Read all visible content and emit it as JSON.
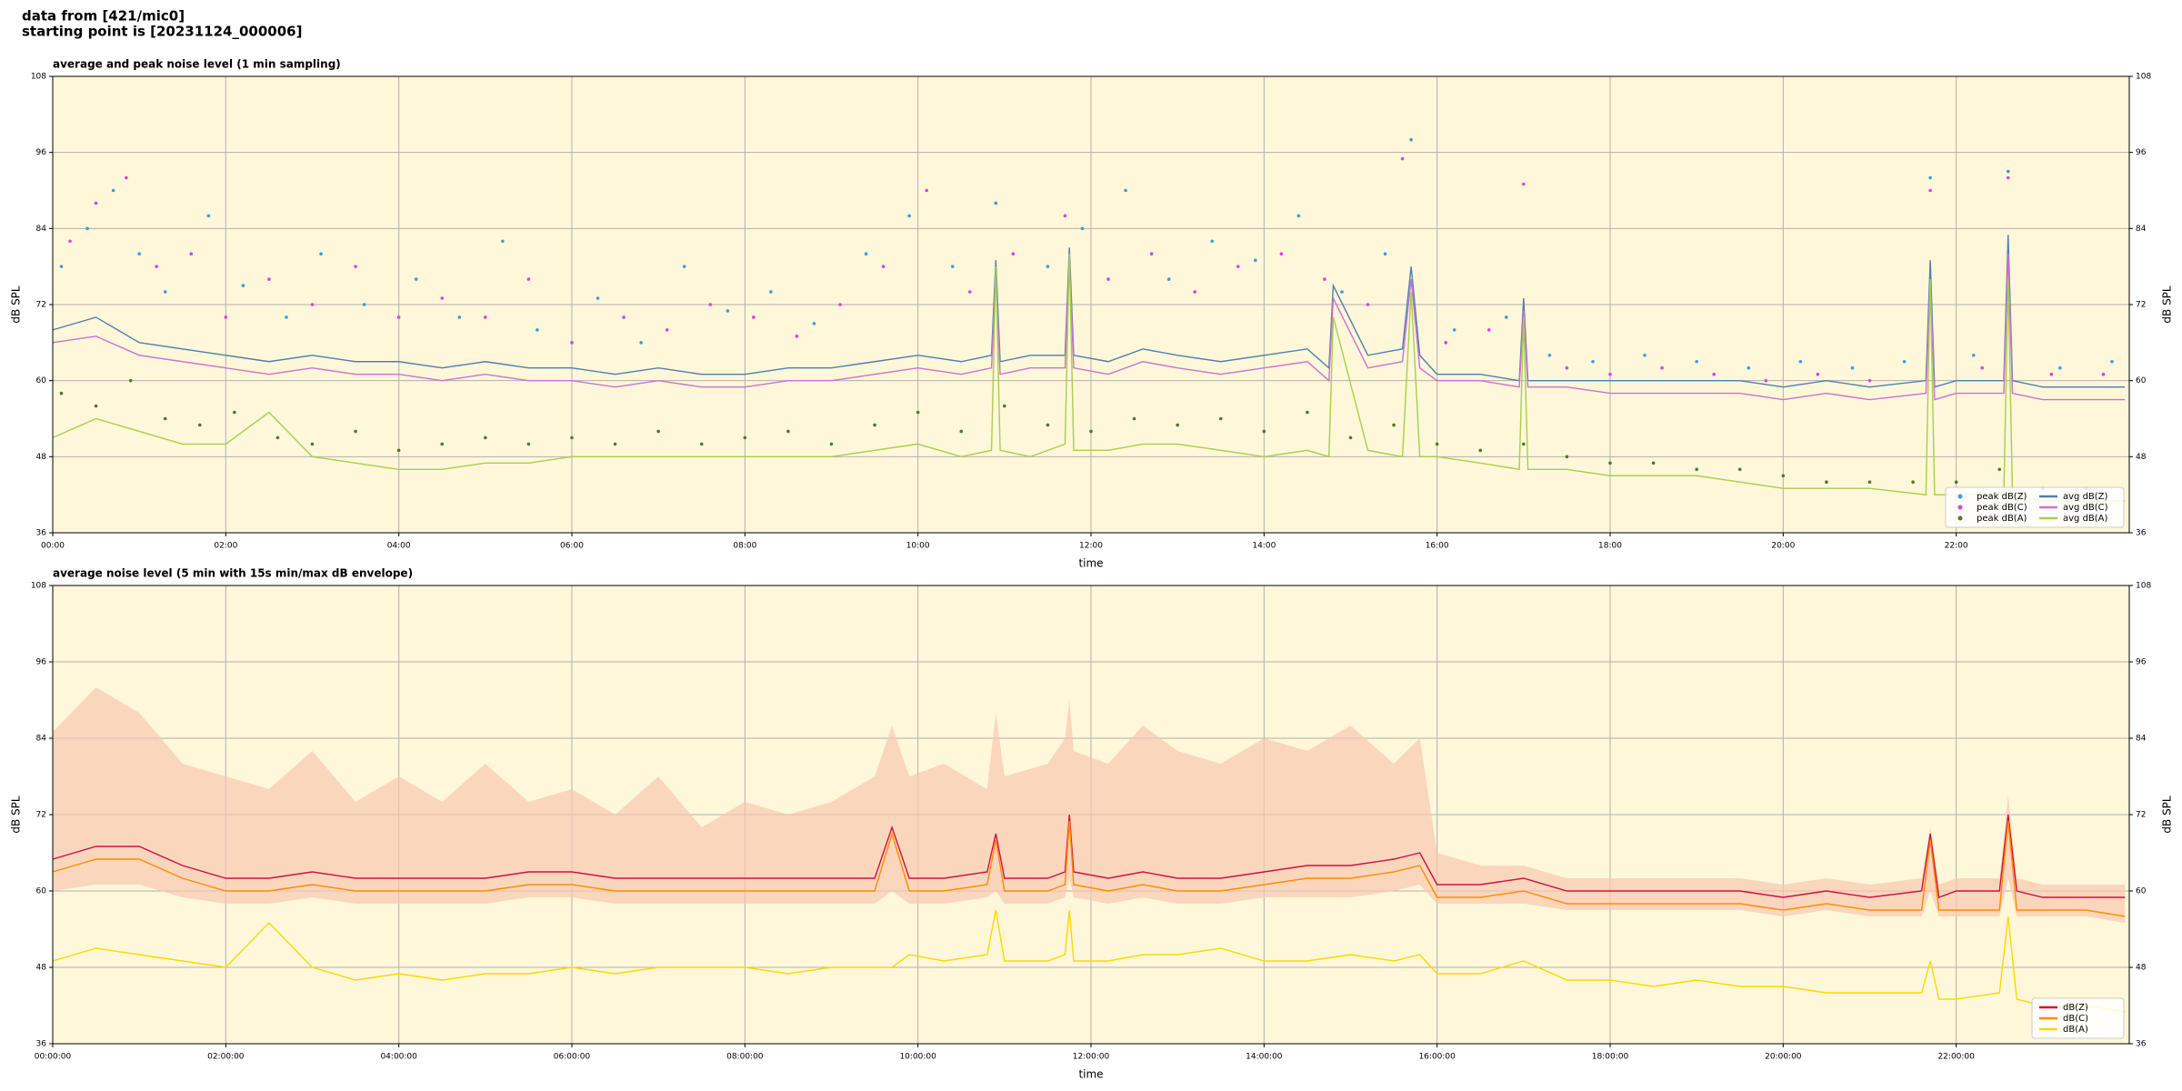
{
  "suptitle": [
    "data from [421/mic0]",
    "starting point is [20231124_000006]"
  ],
  "chart_data": [
    {
      "type": "line",
      "title": "average and peak noise level (1 min sampling)",
      "xlabel": "time",
      "ylabel": "dB SPL",
      "xlim": [
        0,
        24
      ],
      "ylim": [
        36,
        108
      ],
      "xticks": [
        {
          "value": 0,
          "label": "00:00"
        },
        {
          "value": 2,
          "label": "02:00"
        },
        {
          "value": 4,
          "label": "04:00"
        },
        {
          "value": 6,
          "label": "06:00"
        },
        {
          "value": 8,
          "label": "08:00"
        },
        {
          "value": 10,
          "label": "10:00"
        },
        {
          "value": 12,
          "label": "12:00"
        },
        {
          "value": 14,
          "label": "14:00"
        },
        {
          "value": 16,
          "label": "16:00"
        },
        {
          "value": 18,
          "label": "18:00"
        },
        {
          "value": 20,
          "label": "20:00"
        },
        {
          "value": 22,
          "label": "22:00"
        }
      ],
      "yticks": [
        36,
        48,
        60,
        72,
        84,
        96,
        108
      ],
      "grid": true,
      "legend": "lower right",
      "legend_ncol": 2,
      "background": "#fff7d9",
      "x": [
        0,
        0.5,
        1,
        1.5,
        2,
        2.5,
        3,
        3.5,
        4,
        4.5,
        5,
        5.5,
        6,
        6.5,
        7,
        7.5,
        8,
        8.5,
        9,
        9.5,
        10,
        10.5,
        10.85,
        10.9,
        10.95,
        11.3,
        11.7,
        11.75,
        11.8,
        12.2,
        12.6,
        13,
        13.5,
        14,
        14.5,
        14.75,
        14.8,
        15.2,
        15.6,
        15.7,
        15.8,
        16,
        16.5,
        16.95,
        17,
        17.05,
        17.5,
        18,
        18.5,
        19,
        19.5,
        20,
        20.5,
        21,
        21.65,
        21.7,
        21.75,
        22,
        22.55,
        22.6,
        22.65,
        23,
        23.5,
        23.95
      ],
      "series": [
        {
          "name": "peak dB(Z)",
          "type": "scatter",
          "color": "#3a9fd8",
          "x": [
            0.1,
            0.4,
            0.7,
            1.0,
            1.3,
            1.8,
            2.2,
            2.7,
            3.1,
            3.6,
            4.2,
            4.7,
            5.2,
            5.6,
            6.3,
            6.8,
            7.3,
            7.8,
            8.3,
            8.8,
            9.4,
            9.9,
            10.4,
            10.9,
            11.5,
            11.9,
            12.4,
            12.9,
            13.4,
            13.9,
            14.4,
            14.9,
            15.4,
            15.7,
            16.2,
            16.8,
            17.3,
            17.8,
            18.4,
            19,
            19.6,
            20.2,
            20.8,
            21.4,
            21.7,
            22.2,
            22.6,
            23.2,
            23.8
          ],
          "values": [
            78,
            84,
            90,
            80,
            74,
            86,
            75,
            70,
            80,
            72,
            76,
            70,
            82,
            68,
            73,
            66,
            78,
            71,
            74,
            69,
            80,
            86,
            78,
            88,
            78,
            84,
            90,
            76,
            82,
            79,
            86,
            74,
            80,
            98,
            68,
            70,
            64,
            63,
            64,
            63,
            62,
            63,
            62,
            63,
            92,
            64,
            93,
            62,
            63
          ]
        },
        {
          "name": "peak dB(C)",
          "type": "scatter",
          "color": "#e040e0",
          "x": [
            0.2,
            0.5,
            0.85,
            1.2,
            1.6,
            2.0,
            2.5,
            3.0,
            3.5,
            4.0,
            4.5,
            5.0,
            5.5,
            6.0,
            6.6,
            7.1,
            7.6,
            8.1,
            8.6,
            9.1,
            9.6,
            10.1,
            10.6,
            11.1,
            11.7,
            12.2,
            12.7,
            13.2,
            13.7,
            14.2,
            14.7,
            15.2,
            15.6,
            16.1,
            16.6,
            17.0,
            17.5,
            18.0,
            18.6,
            19.2,
            19.8,
            20.4,
            21.0,
            21.7,
            22.3,
            22.6,
            23.1,
            23.7
          ],
          "values": [
            82,
            88,
            92,
            78,
            80,
            70,
            76,
            72,
            78,
            70,
            73,
            70,
            76,
            66,
            70,
            68,
            72,
            70,
            67,
            72,
            78,
            90,
            74,
            80,
            86,
            76,
            80,
            74,
            78,
            80,
            76,
            72,
            95,
            66,
            68,
            91,
            62,
            61,
            62,
            61,
            60,
            61,
            60,
            90,
            62,
            92,
            61,
            61
          ]
        },
        {
          "name": "peak dB(A)",
          "type": "scatter",
          "color": "#4a7a30",
          "x": [
            0.1,
            0.5,
            0.9,
            1.3,
            1.7,
            2.1,
            2.6,
            3.0,
            3.5,
            4.0,
            4.5,
            5.0,
            5.5,
            6.0,
            6.5,
            7.0,
            7.5,
            8.0,
            8.5,
            9.0,
            9.5,
            10.0,
            10.5,
            11.0,
            11.5,
            12.0,
            12.5,
            13.0,
            13.5,
            14.0,
            14.5,
            15.0,
            15.5,
            16.0,
            16.5,
            17.0,
            17.5,
            18.0,
            18.5,
            19.0,
            19.5,
            20.0,
            20.5,
            21.0,
            21.5,
            22.0,
            22.5,
            23.0,
            23.5
          ],
          "values": [
            58,
            56,
            60,
            54,
            53,
            55,
            51,
            50,
            52,
            49,
            50,
            51,
            50,
            51,
            50,
            52,
            50,
            51,
            52,
            50,
            53,
            55,
            52,
            56,
            53,
            52,
            54,
            53,
            54,
            52,
            55,
            51,
            53,
            50,
            49,
            50,
            48,
            47,
            47,
            46,
            46,
            45,
            44,
            44,
            44,
            44,
            46,
            43,
            43
          ]
        },
        {
          "name": "avg dB(Z)",
          "type": "line",
          "color": "#4f7fb0",
          "values": [
            68,
            70,
            66,
            65,
            64,
            63,
            64,
            63,
            63,
            62,
            63,
            62,
            62,
            61,
            62,
            61,
            61,
            62,
            62,
            63,
            64,
            63,
            64,
            79,
            63,
            64,
            64,
            81,
            64,
            63,
            65,
            64,
            63,
            64,
            65,
            62,
            75,
            64,
            65,
            78,
            64,
            61,
            61,
            60,
            73,
            60,
            60,
            60,
            60,
            60,
            60,
            59,
            60,
            59,
            60,
            79,
            59,
            60,
            60,
            83,
            60,
            59,
            59,
            59
          ]
        },
        {
          "name": "avg dB(C)",
          "type": "line",
          "color": "#d070d0",
          "values": [
            66,
            67,
            64,
            63,
            62,
            61,
            62,
            61,
            61,
            60,
            61,
            60,
            60,
            59,
            60,
            59,
            59,
            60,
            60,
            61,
            62,
            61,
            62,
            77,
            61,
            62,
            62,
            79,
            62,
            61,
            63,
            62,
            61,
            62,
            63,
            60,
            73,
            62,
            63,
            76,
            62,
            60,
            60,
            59,
            71,
            59,
            59,
            58,
            58,
            58,
            58,
            57,
            58,
            57,
            58,
            76,
            57,
            58,
            58,
            80,
            58,
            57,
            57,
            57
          ]
        },
        {
          "name": "avg dB(A)",
          "type": "line",
          "color": "#a5d04a",
          "values": [
            51,
            54,
            52,
            50,
            50,
            55,
            48,
            47,
            46,
            46,
            47,
            47,
            48,
            48,
            48,
            48,
            48,
            48,
            48,
            49,
            50,
            48,
            49,
            78,
            49,
            48,
            50,
            80,
            49,
            49,
            50,
            50,
            49,
            48,
            49,
            48,
            70,
            49,
            48,
            74,
            48,
            48,
            47,
            46,
            70,
            46,
            46,
            45,
            45,
            45,
            44,
            43,
            43,
            43,
            42,
            76,
            42,
            42,
            42,
            76,
            42,
            41,
            41,
            41
          ]
        }
      ]
    },
    {
      "type": "line",
      "title": "average noise level (5 min with 15s min/max dB envelope)",
      "xlabel": "time",
      "ylabel": "dB SPL",
      "xlim": [
        0,
        24
      ],
      "ylim": [
        36,
        108
      ],
      "xticks": [
        {
          "value": 0,
          "label": "00:00:00"
        },
        {
          "value": 2,
          "label": "02:00:00"
        },
        {
          "value": 4,
          "label": "04:00:00"
        },
        {
          "value": 6,
          "label": "06:00:00"
        },
        {
          "value": 8,
          "label": "08:00:00"
        },
        {
          "value": 10,
          "label": "10:00:00"
        },
        {
          "value": 12,
          "label": "12:00:00"
        },
        {
          "value": 14,
          "label": "14:00:00"
        },
        {
          "value": 16,
          "label": "16:00:00"
        },
        {
          "value": 18,
          "label": "18:00:00"
        },
        {
          "value": 20,
          "label": "20:00:00"
        },
        {
          "value": 22,
          "label": "22:00:00"
        }
      ],
      "yticks": [
        36,
        48,
        60,
        72,
        84,
        96,
        108
      ],
      "grid": true,
      "legend": "lower right",
      "legend_ncol": 1,
      "background": "#fff7d9",
      "x": [
        0,
        0.5,
        1,
        1.5,
        2,
        2.5,
        3,
        3.5,
        4,
        4.5,
        5,
        5.5,
        6,
        6.5,
        7,
        7.5,
        8,
        8.5,
        9,
        9.5,
        9.7,
        9.9,
        10.3,
        10.8,
        10.9,
        11.0,
        11.5,
        11.7,
        11.75,
        11.8,
        12.2,
        12.6,
        13,
        13.5,
        14,
        14.5,
        15,
        15.5,
        15.8,
        16,
        16.5,
        17,
        17.5,
        18,
        18.5,
        19,
        19.5,
        20,
        20.5,
        21,
        21.6,
        21.7,
        21.8,
        22,
        22.5,
        22.6,
        22.7,
        23,
        23.5,
        23.95
      ],
      "envelope": {
        "color": "#f8c8b0",
        "high": [
          85,
          92,
          88,
          80,
          78,
          76,
          82,
          74,
          78,
          74,
          80,
          74,
          76,
          72,
          78,
          70,
          74,
          72,
          74,
          78,
          86,
          78,
          80,
          76,
          88,
          78,
          80,
          84,
          90,
          82,
          80,
          86,
          82,
          80,
          84,
          82,
          86,
          80,
          84,
          66,
          64,
          64,
          62,
          62,
          62,
          62,
          62,
          61,
          62,
          61,
          62,
          70,
          61,
          62,
          62,
          75,
          62,
          61,
          61,
          61
        ],
        "low": [
          60,
          61,
          61,
          59,
          58,
          58,
          59,
          58,
          58,
          58,
          58,
          59,
          59,
          58,
          58,
          58,
          58,
          58,
          58,
          58,
          60,
          58,
          58,
          59,
          60,
          58,
          58,
          59,
          62,
          59,
          58,
          59,
          58,
          58,
          59,
          59,
          59,
          60,
          61,
          58,
          58,
          58,
          57,
          57,
          57,
          57,
          57,
          56,
          57,
          56,
          56,
          60,
          56,
          56,
          56,
          62,
          56,
          56,
          56,
          55
        ]
      },
      "series": [
        {
          "name": "dB(Z)",
          "type": "line",
          "color": "#d01040",
          "values": [
            65,
            67,
            67,
            64,
            62,
            62,
            63,
            62,
            62,
            62,
            62,
            63,
            63,
            62,
            62,
            62,
            62,
            62,
            62,
            62,
            70,
            62,
            62,
            63,
            69,
            62,
            62,
            63,
            72,
            63,
            62,
            63,
            62,
            62,
            63,
            64,
            64,
            65,
            66,
            61,
            61,
            62,
            60,
            60,
            60,
            60,
            60,
            59,
            60,
            59,
            60,
            69,
            59,
            60,
            60,
            72,
            60,
            59,
            59,
            59
          ]
        },
        {
          "name": "dB(C)",
          "type": "line",
          "color": "#ff8c00",
          "values": [
            63,
            65,
            65,
            62,
            60,
            60,
            61,
            60,
            60,
            60,
            60,
            61,
            61,
            60,
            60,
            60,
            60,
            60,
            60,
            60,
            69,
            60,
            60,
            61,
            68,
            60,
            60,
            61,
            71,
            61,
            60,
            61,
            60,
            60,
            61,
            62,
            62,
            63,
            64,
            59,
            59,
            60,
            58,
            58,
            58,
            58,
            58,
            57,
            58,
            57,
            57,
            68,
            57,
            57,
            57,
            71,
            57,
            57,
            57,
            56
          ]
        },
        {
          "name": "dB(A)",
          "type": "line",
          "color": "#ffd700",
          "values": [
            49,
            51,
            50,
            49,
            48,
            55,
            48,
            46,
            47,
            46,
            47,
            47,
            48,
            47,
            48,
            48,
            48,
            47,
            48,
            48,
            48,
            50,
            49,
            50,
            57,
            49,
            49,
            50,
            57,
            49,
            49,
            50,
            50,
            51,
            49,
            49,
            50,
            49,
            50,
            47,
            47,
            49,
            46,
            46,
            45,
            46,
            45,
            45,
            44,
            44,
            44,
            49,
            43,
            43,
            44,
            56,
            43,
            42,
            42,
            41
          ]
        }
      ]
    }
  ]
}
